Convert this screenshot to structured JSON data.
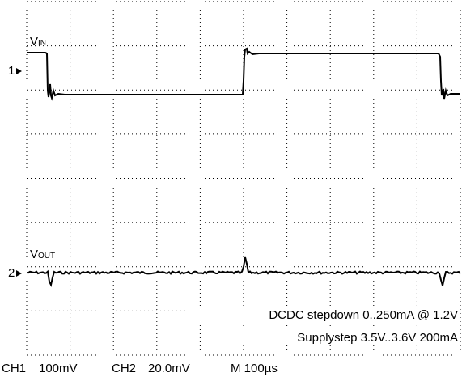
{
  "traces": [
    {
      "label": "V",
      "label_sub": "IN",
      "marker": "1"
    },
    {
      "label": "V",
      "label_sub": "OUT",
      "marker": "2"
    }
  ],
  "annotation": [
    "DCDC stepdown 0..250mA @ 1.2V",
    "Supplystep 3.5V..3.6V 200mA"
  ],
  "status_bar": [
    "CH1",
    "100mV",
    "CH2",
    "20.0mV",
    "M 100µs"
  ]
}
